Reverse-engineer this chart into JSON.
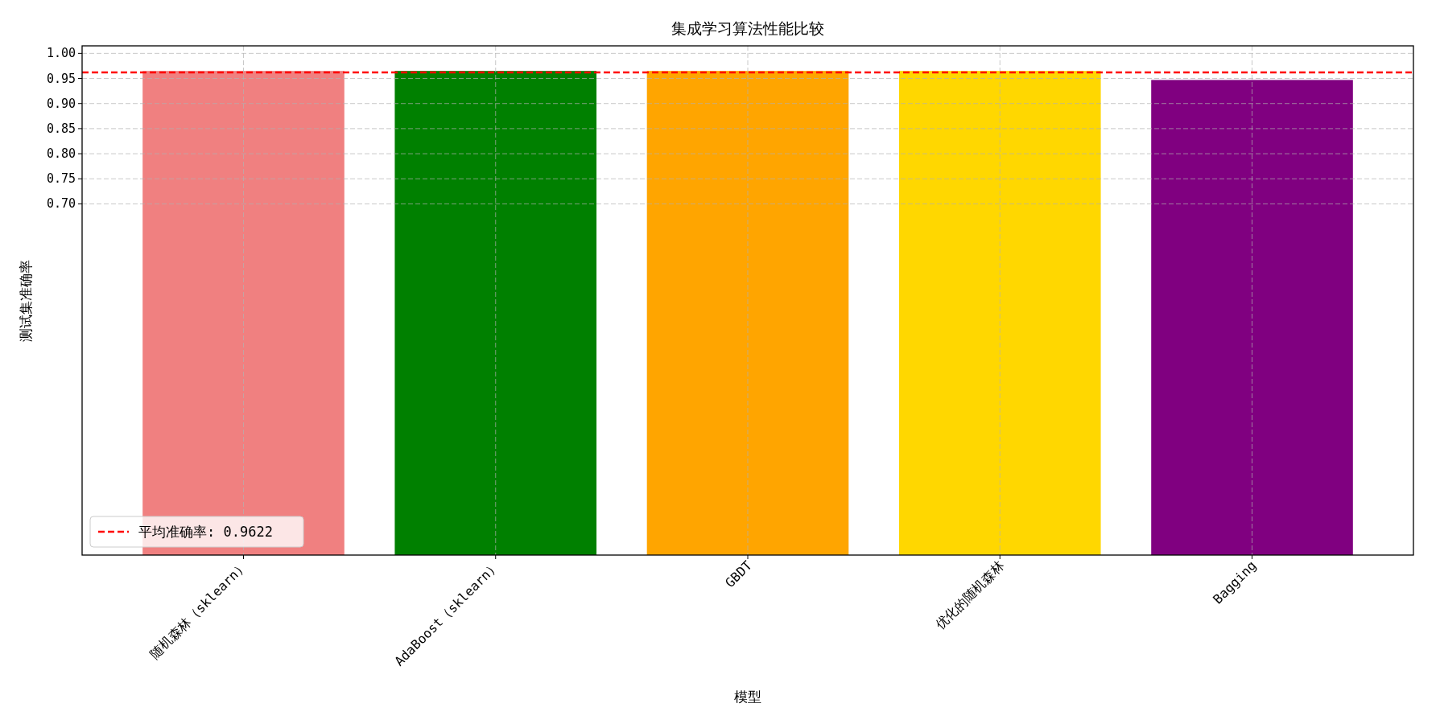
{
  "chart_data": {
    "type": "bar",
    "title": "集成学习算法性能比较",
    "xlabel": "模型",
    "ylabel": "测试集准确率",
    "categories": [
      "随机森林（sklearn）",
      "AdaBoost（sklearn）",
      "GBDT",
      "优化的随机森林",
      "Bagging"
    ],
    "values": [
      0.965,
      0.965,
      0.965,
      0.965,
      0.947
    ],
    "colors": [
      "#f08080",
      "#008000",
      "#ffa500",
      "#ffd700",
      "#800080"
    ],
    "ylim": [
      0,
      1.015
    ],
    "yticks": [
      {
        "value": 0.7,
        "label": "0.70"
      },
      {
        "value": 0.75,
        "label": "0.75"
      },
      {
        "value": 0.8,
        "label": "0.80"
      },
      {
        "value": 0.85,
        "label": "0.85"
      },
      {
        "value": 0.9,
        "label": "0.90"
      },
      {
        "value": 0.95,
        "label": "0.95"
      },
      {
        "value": 1.0,
        "label": "1.00"
      }
    ],
    "ref_lines": [
      {
        "axis": "y",
        "value": 0.9622,
        "label": "平均准确率: 0.9622",
        "color": "#ff0000",
        "line_style": "dashed"
      }
    ],
    "grid": true,
    "legend": "bottom left"
  }
}
